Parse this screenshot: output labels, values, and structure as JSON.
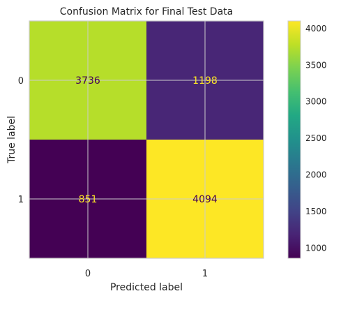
{
  "chart_data": {
    "type": "heatmap",
    "title": "Confusion Matrix for Final Test Data",
    "xlabel": "Predicted label",
    "ylabel": "True label",
    "x_categories": [
      "0",
      "1"
    ],
    "y_categories": [
      "0",
      "1"
    ],
    "matrix": [
      [
        3736,
        1198
      ],
      [
        851,
        4094
      ]
    ],
    "colormap": "viridis",
    "colorbar": {
      "min": 851,
      "max": 4094,
      "ticks": [
        1000,
        1500,
        2000,
        2500,
        3000,
        3500,
        4000
      ]
    },
    "grid": true,
    "colors": {
      "text_on_dark": "#fde725",
      "text_on_light": "#440154",
      "grid": "#cccccc",
      "frame": "#cccccc"
    }
  }
}
